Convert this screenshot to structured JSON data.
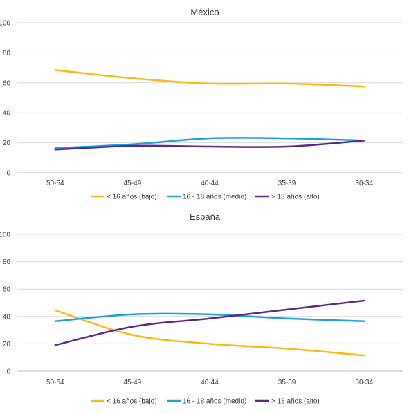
{
  "chart_data": [
    {
      "type": "line",
      "title": "México",
      "xlabel": "",
      "ylabel": "",
      "categories": [
        "50-54",
        "45-49",
        "40-44",
        "35-39",
        "30-34"
      ],
      "ylim": [
        0,
        100
      ],
      "yticks": [
        0,
        20,
        40,
        60,
        80,
        100
      ],
      "grid": true,
      "legend": "bottom",
      "series": [
        {
          "name": "< 16 años (bajo)",
          "values": [
            68.5,
            63,
            59.5,
            59.5,
            57.5
          ],
          "color": "#FDB913"
        },
        {
          "name": "16 - 18 años (medio)",
          "values": [
            16.5,
            19,
            23,
            23,
            21.5
          ],
          "color": "#1BA1E2"
        },
        {
          "name": "> 18 años (alto)",
          "values": [
            15.5,
            18,
            17.5,
            17.5,
            21.5
          ],
          "color": "#5B2A86"
        }
      ]
    },
    {
      "type": "line",
      "title": "España",
      "xlabel": "",
      "ylabel": "",
      "categories": [
        "50-54",
        "45-49",
        "40-44",
        "35-39",
        "30-34"
      ],
      "ylim": [
        0,
        100
      ],
      "yticks": [
        0,
        20,
        40,
        60,
        80,
        100
      ],
      "grid": true,
      "legend": "bottom",
      "series": [
        {
          "name": "< 16 años (bajo)",
          "values": [
            44.5,
            26.5,
            20,
            16.5,
            11.5
          ],
          "color": "#FDB913"
        },
        {
          "name": "16 - 18 años (medio)",
          "values": [
            36.5,
            41.5,
            41.5,
            38.5,
            36.5
          ],
          "color": "#1BA1E2"
        },
        {
          "name": "> 18 años (alto)",
          "values": [
            19,
            32.5,
            38.5,
            45,
            51.5
          ],
          "color": "#5B2A86"
        }
      ]
    }
  ]
}
